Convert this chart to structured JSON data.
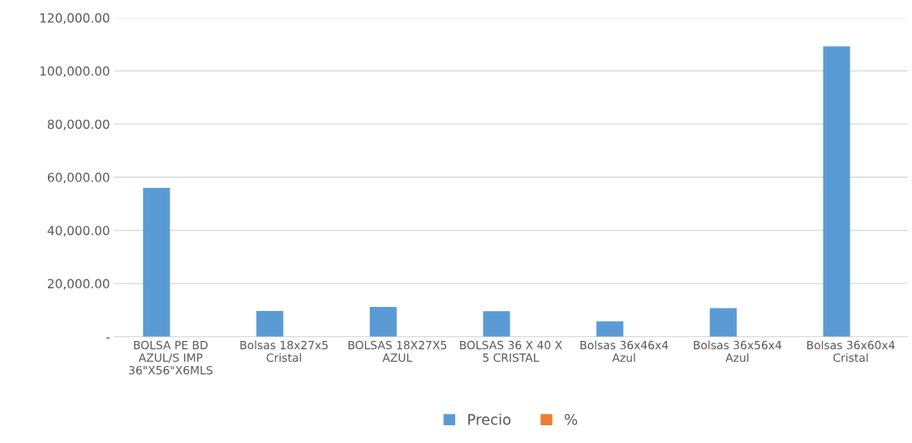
{
  "chart_data": {
    "type": "bar",
    "categories": [
      "BOLSA PE BD AZUL/S IMP 36\"X56\"X6MLS",
      "Bolsas 18x27x5 Cristal",
      "BOLSAS 18X27X5 AZUL",
      "BOLSAS 36 X 40 X 5 CRISTAL",
      "Bolsas 36x46x4 Azul",
      "Bolsas 36x56x4 Azul",
      "Bolsas 36x60x4 Cristal"
    ],
    "series": [
      {
        "name": "Precio",
        "color": "#5b9bd5",
        "values": [
          56000,
          9700,
          11200,
          9600,
          5800,
          10700,
          109200
        ]
      },
      {
        "name": "%",
        "color": "#ed7d31",
        "values": [
          0,
          0,
          0,
          0,
          0,
          0,
          0
        ]
      }
    ],
    "ylim": [
      0,
      120000
    ],
    "yticks": [
      {
        "value": 0,
        "label": "-"
      },
      {
        "value": 20000,
        "label": "20,000.00"
      },
      {
        "value": 40000,
        "label": "40,000.00"
      },
      {
        "value": 60000,
        "label": "60,000.00"
      },
      {
        "value": 80000,
        "label": "80,000.00"
      },
      {
        "value": 100000,
        "label": "100,000.00"
      },
      {
        "value": 120000,
        "label": "120,000.00"
      }
    ],
    "grid": "y",
    "legend": "bottom"
  }
}
